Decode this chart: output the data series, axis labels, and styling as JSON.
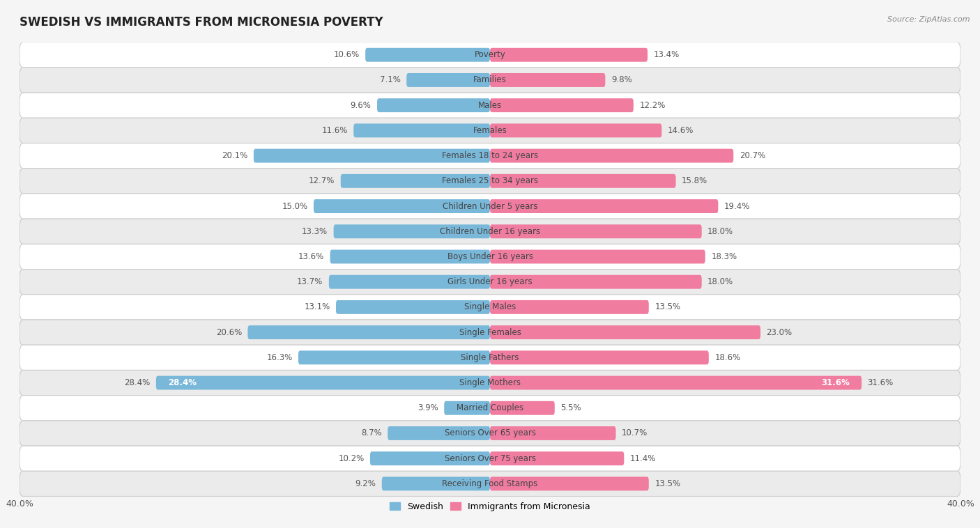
{
  "title": "SWEDISH VS IMMIGRANTS FROM MICRONESIA POVERTY",
  "source": "Source: ZipAtlas.com",
  "categories": [
    "Poverty",
    "Families",
    "Males",
    "Females",
    "Females 18 to 24 years",
    "Females 25 to 34 years",
    "Children Under 5 years",
    "Children Under 16 years",
    "Boys Under 16 years",
    "Girls Under 16 years",
    "Single Males",
    "Single Females",
    "Single Fathers",
    "Single Mothers",
    "Married Couples",
    "Seniors Over 65 years",
    "Seniors Over 75 years",
    "Receiving Food Stamps"
  ],
  "swedish": [
    10.6,
    7.1,
    9.6,
    11.6,
    20.1,
    12.7,
    15.0,
    13.3,
    13.6,
    13.7,
    13.1,
    20.6,
    16.3,
    28.4,
    3.9,
    8.7,
    10.2,
    9.2
  ],
  "micronesia": [
    13.4,
    9.8,
    12.2,
    14.6,
    20.7,
    15.8,
    19.4,
    18.0,
    18.3,
    18.0,
    13.5,
    23.0,
    18.6,
    31.6,
    5.5,
    10.7,
    11.4,
    13.5
  ],
  "swedish_color": "#7ab8d9",
  "micronesia_color": "#f07ca0",
  "background_color": "#f5f5f5",
  "row_color_light": "#ffffff",
  "row_color_dark": "#ebebeb",
  "xlim": 40.0,
  "bar_height": 0.55,
  "label_fontsize": 8.5,
  "value_fontsize": 8.5,
  "title_fontsize": 12,
  "legend_labels": [
    "Swedish",
    "Immigrants from Micronesia"
  ]
}
